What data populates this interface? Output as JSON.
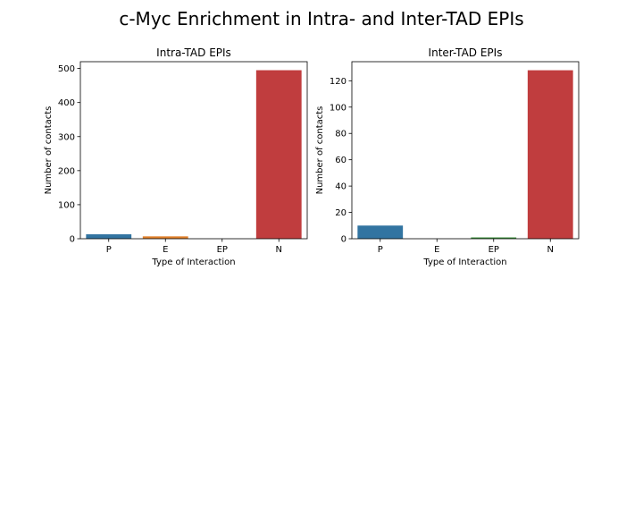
{
  "figure": {
    "suptitle": "c-Myc Enrichment in Intra- and Inter-TAD EPIs"
  },
  "chart_data": [
    {
      "type": "bar",
      "title": "Intra-TAD EPIs",
      "xlabel": "Type of Interaction",
      "ylabel": "Number of contacts",
      "categories": [
        "P",
        "E",
        "EP",
        "N"
      ],
      "values": [
        13,
        7,
        0,
        495
      ],
      "ylim": [
        0,
        520
      ],
      "yticks": [
        0,
        100,
        200,
        300,
        400,
        500
      ],
      "grid": false,
      "colors": [
        "#3274a1",
        "#e1812c",
        "#3a923a",
        "#c03d3e"
      ]
    },
    {
      "type": "bar",
      "title": "Inter-TAD EPIs",
      "xlabel": "Type of Interaction",
      "ylabel": "Number of contacts",
      "categories": [
        "P",
        "E",
        "EP",
        "N"
      ],
      "values": [
        10,
        0,
        1,
        128
      ],
      "ylim": [
        0,
        134.5
      ],
      "yticks": [
        0,
        20,
        40,
        60,
        80,
        100,
        120
      ],
      "grid": false,
      "colors": [
        "#3274a1",
        "#e1812c",
        "#3a923a",
        "#c03d3e"
      ]
    }
  ]
}
